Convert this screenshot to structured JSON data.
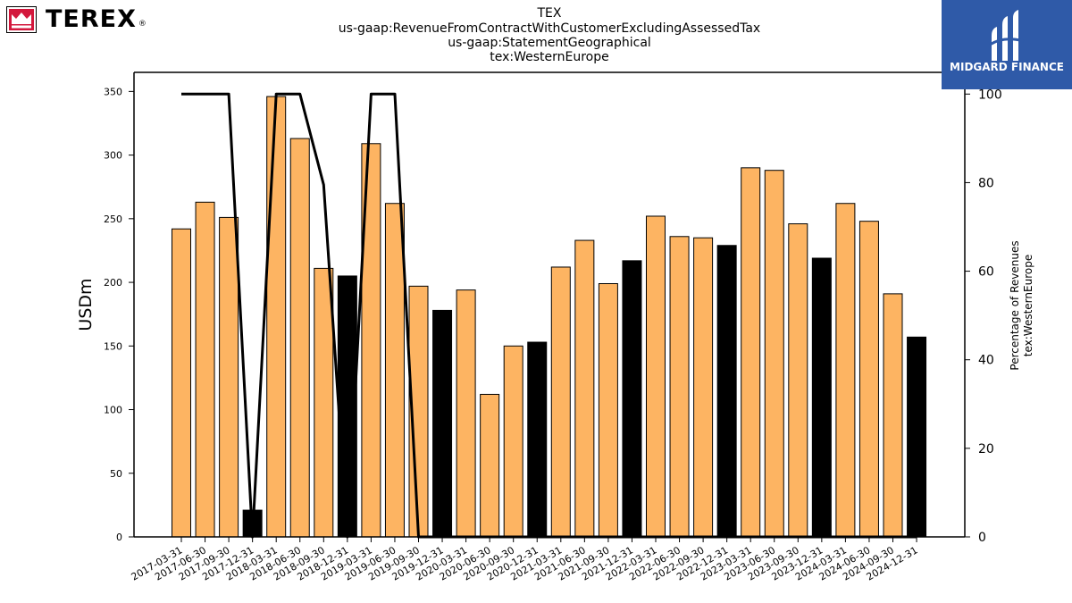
{
  "title_lines": [
    "TEX",
    "us-gaap:RevenueFromContractWithCustomerExcludingAssessedTax",
    "us-gaap:StatementGeographical",
    "tex:WesternEurope"
  ],
  "brand": {
    "name": "TEREX",
    "mark": "®"
  },
  "watermark": {
    "text": "MIDGARD FINANCE",
    "icon": "midgard-logo-icon",
    "bg_color": "#2f5aa8"
  },
  "chart_data": {
    "type": "bar",
    "ylabel": "USDm",
    "y2label_lines": [
      "Percentage of Revenues",
      "tex:WesternEurope"
    ],
    "ylim": [
      0,
      365
    ],
    "y2lim": [
      0,
      104.9
    ],
    "yticks": [
      0,
      50,
      100,
      150,
      200,
      250,
      300,
      350
    ],
    "y2ticks": [
      0,
      20,
      40,
      60,
      80,
      100
    ],
    "categories": [
      "2017-03-31",
      "2017-06-30",
      "2017-09-30",
      "2017-12-31",
      "2018-03-31",
      "2018-06-30",
      "2018-09-30",
      "2018-12-31",
      "2019-03-31",
      "2019-06-30",
      "2019-09-30",
      "2019-12-31",
      "2020-03-31",
      "2020-06-30",
      "2020-09-30",
      "2020-12-31",
      "2021-03-31",
      "2021-06-30",
      "2021-09-30",
      "2021-12-31",
      "2022-03-31",
      "2022-06-30",
      "2022-09-30",
      "2022-12-31",
      "2023-03-31",
      "2023-06-30",
      "2023-09-30",
      "2023-12-31",
      "2024-03-31",
      "2024-06-30",
      "2024-09-30",
      "2024-12-31"
    ],
    "series": [
      {
        "type": "bar",
        "values": [
          242,
          263,
          251,
          21,
          346,
          313,
          211,
          205,
          309,
          262,
          197,
          178,
          194,
          112,
          150,
          153,
          212,
          233,
          199,
          217,
          252,
          236,
          235,
          229,
          290,
          288,
          246,
          219,
          262,
          248,
          191,
          157
        ],
        "bar_colors": [
          "#fdb462",
          "#fdb462",
          "#fdb462",
          "#000000",
          "#fdb462",
          "#fdb462",
          "#fdb462",
          "#000000",
          "#fdb462",
          "#fdb462",
          "#fdb462",
          "#000000",
          "#fdb462",
          "#fdb462",
          "#fdb462",
          "#000000",
          "#fdb462",
          "#fdb462",
          "#fdb462",
          "#000000",
          "#fdb462",
          "#fdb462",
          "#fdb462",
          "#000000",
          "#fdb462",
          "#fdb462",
          "#fdb462",
          "#000000",
          "#fdb462",
          "#fdb462",
          "#fdb462",
          "#000000"
        ]
      },
      {
        "type": "line",
        "axis": "right",
        "values": [
          100,
          100,
          100,
          0,
          100,
          100,
          79.5,
          0,
          100,
          100,
          0,
          0,
          0,
          0,
          0,
          0,
          0,
          0,
          0,
          0,
          0,
          0,
          0,
          0,
          0,
          0,
          0,
          0,
          0,
          0,
          0,
          0
        ]
      }
    ],
    "grid": false,
    "legend": "none"
  }
}
